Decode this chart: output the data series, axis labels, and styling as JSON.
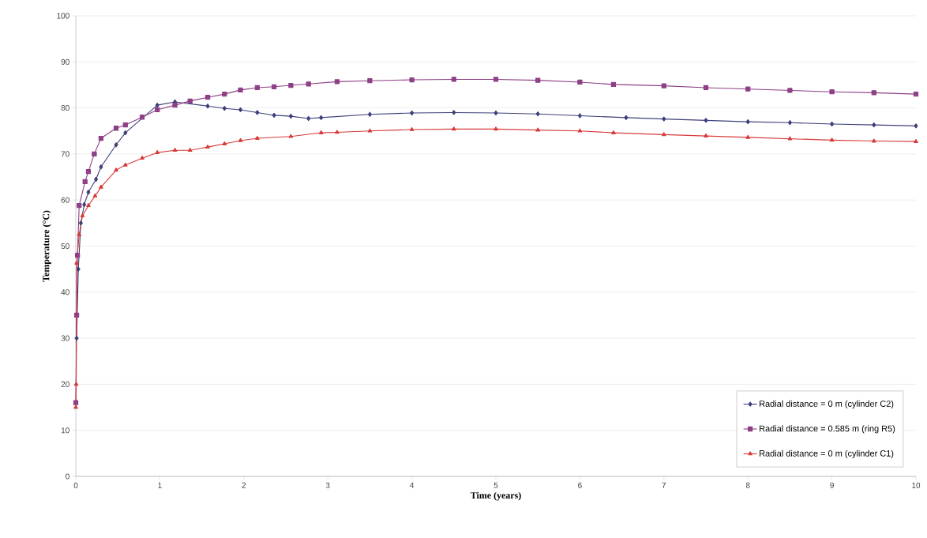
{
  "chart_data": {
    "type": "line",
    "xlabel": "Time (years)",
    "ylabel": "Temperature (°C)",
    "xlim": [
      0,
      10
    ],
    "ylim": [
      0,
      100
    ],
    "xticks": [
      0,
      1,
      2,
      3,
      4,
      5,
      6,
      7,
      8,
      9,
      10
    ],
    "yticks": [
      0,
      10,
      20,
      30,
      40,
      50,
      60,
      70,
      80,
      90,
      100
    ],
    "grid": "y",
    "legend": "bottom right",
    "line_style": "solid",
    "series": [
      {
        "name": "Radial distance = 0 m (cylinder C2)",
        "color": "#3d3f7a",
        "marker": "diamond",
        "x": [
          0.01,
          0.03,
          0.06,
          0.1,
          0.15,
          0.24,
          0.3,
          0.48,
          0.59,
          0.79,
          0.97,
          1.18,
          1.36,
          1.57,
          1.77,
          1.96,
          2.16,
          2.36,
          2.56,
          2.77,
          2.92,
          3.5,
          4,
          4.5,
          5,
          5.5,
          6,
          6.55,
          7,
          7.5,
          8,
          8.5,
          9,
          9.5,
          10
        ],
        "values": [
          30,
          45,
          55,
          59,
          61.7,
          64.5,
          67.2,
          72,
          74.6,
          null,
          80.6,
          81.3,
          null,
          80.4,
          79.9,
          79.6,
          79,
          78.4,
          78.2,
          77.7,
          77.9,
          78.6,
          78.9,
          79,
          78.9,
          78.7,
          78.3,
          77.9,
          77.6,
          77.3,
          77,
          76.8,
          76.5,
          76.3,
          76.1
        ]
      },
      {
        "name": "Radial distance = 0.585 m (ring R5)",
        "color": "#8e3f86",
        "marker": "square",
        "x": [
          0,
          0.01,
          0.02,
          0.04,
          0.11,
          0.15,
          0.22,
          0.3,
          0.48,
          0.59,
          0.79,
          0.97,
          1.18,
          1.36,
          1.57,
          1.77,
          1.96,
          2.16,
          2.36,
          2.56,
          2.77,
          3.11,
          3.5,
          4,
          4.5,
          5,
          5.5,
          6,
          6.4,
          7,
          7.5,
          8,
          8.5,
          9,
          9.5,
          10
        ],
        "values": [
          16,
          35,
          48,
          58.8,
          64,
          66.2,
          70,
          73.4,
          75.6,
          76.3,
          78,
          79.6,
          80.6,
          81.5,
          82.3,
          83,
          83.9,
          84.4,
          84.6,
          84.9,
          85.2,
          85.7,
          85.9,
          86.1,
          86.2,
          86.2,
          86,
          85.6,
          85.1,
          84.8,
          84.4,
          84.1,
          83.8,
          83.5,
          83.3,
          83
        ]
      },
      {
        "name": "Radial distance = 0 m (cylinder C1)",
        "color": "#d63a3a",
        "marker": "triangle",
        "x": [
          0,
          0.005,
          0.01,
          0.04,
          0.08,
          0.15,
          0.23,
          0.3,
          0.48,
          0.59,
          0.79,
          0.97,
          1.18,
          1.36,
          1.57,
          1.77,
          1.96,
          2.16,
          2.56,
          2.92,
          3.11,
          3.5,
          4,
          4.5,
          5,
          5.5,
          6,
          6.4,
          7,
          7.5,
          8,
          8.5,
          9,
          9.5,
          10
        ],
        "values": [
          15,
          20,
          46.3,
          52.5,
          56.6,
          58.8,
          60.9,
          62.8,
          66.5,
          67.6,
          69.1,
          70.3,
          70.8,
          70.8,
          71.5,
          72.2,
          72.9,
          73.4,
          73.8,
          74.6,
          74.7,
          75,
          75.3,
          75.4,
          75.4,
          75.2,
          75,
          74.6,
          74.2,
          73.9,
          73.6,
          73.3,
          73,
          72.8,
          72.7
        ]
      }
    ]
  }
}
